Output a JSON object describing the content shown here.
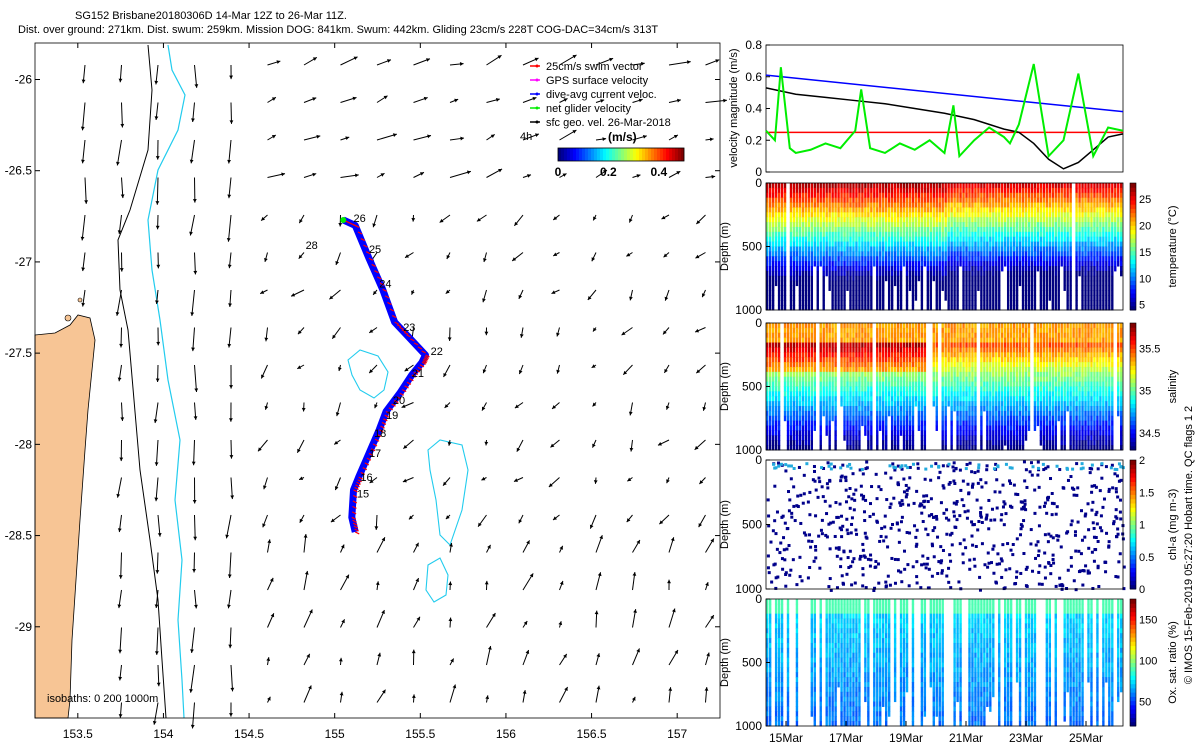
{
  "header": {
    "line1": "SG152 Brisbane20180306D 14-Mar 12Z to 26-Mar 11Z.",
    "line2": "Dist. over ground: 271km. Dist. swum: 259km. Mission DOG: 841km. Swum: 442km. Gliding 23cm/s 228T COG-DAC=34cm/s 313T"
  },
  "colors": {
    "land": "#f7c595",
    "isobath_cyan": "#22ccee",
    "track": "#0000ff",
    "swim_red": "#ff0000",
    "gps_magenta": "#ff00ff",
    "net_green": "#00ee00"
  },
  "chart_data": [
    {
      "type": "map",
      "xlim": [
        153.25,
        157.25
      ],
      "ylim": [
        -29.5,
        -25.8
      ],
      "x_ticks": [
        153.5,
        154,
        154.5,
        155,
        155.5,
        156,
        156.5,
        157
      ],
      "x_tick_labels": [
        "153.5",
        "154",
        "154.5",
        "155",
        "155.5",
        "156",
        "156.5",
        "157"
      ],
      "y_ticks": [
        -26,
        -26.5,
        -27,
        -27.5,
        -28,
        -28.5,
        -29
      ],
      "y_tick_labels": [
        "-26",
        "-26.5",
        "-27",
        "-27.5",
        "-28",
        "-28.5",
        "-29"
      ],
      "legend": [
        {
          "label": "25cm/s swim vector",
          "color": "#ff0000"
        },
        {
          "label": "GPS surface velocity",
          "color": "#ff00ff"
        },
        {
          "label": "dive-avg current veloc.",
          "color": "#0000ff"
        },
        {
          "label": "net glider velocity",
          "color": "#00ee00"
        },
        {
          "label": "sfc geo. vel. 26-Mar-2018",
          "color": "#000000"
        }
      ],
      "legend_position": "top-right",
      "colorbar": {
        "title": "(m/s)",
        "ticks": [
          0,
          0.2,
          0.4
        ],
        "tick_labels": [
          "0",
          "0.2",
          "0.4"
        ],
        "range": [
          0,
          0.5
        ]
      },
      "annotations": {
        "time_label": "4h",
        "isobaths_label": "isobaths: 0  200  1000m"
      },
      "track_days": [
        {
          "label": "26",
          "lon": 155.11,
          "lat": -26.78
        },
        {
          "label": "25",
          "lon": 155.2,
          "lat": -26.95
        },
        {
          "label": "24",
          "lon": 155.26,
          "lat": -27.14
        },
        {
          "label": "23",
          "lon": 155.4,
          "lat": -27.38
        },
        {
          "label": "22",
          "lon": 155.56,
          "lat": -27.51
        },
        {
          "label": "21",
          "lon": 155.45,
          "lat": -27.63
        },
        {
          "label": "20",
          "lon": 155.34,
          "lat": -27.78
        },
        {
          "label": "19",
          "lon": 155.3,
          "lat": -27.86
        },
        {
          "label": "18",
          "lon": 155.23,
          "lat": -27.96
        },
        {
          "label": "17",
          "lon": 155.2,
          "lat": -28.07
        },
        {
          "label": "16",
          "lon": 155.15,
          "lat": -28.2
        },
        {
          "label": "15",
          "lon": 155.13,
          "lat": -28.29
        },
        {
          "label": "28",
          "lon": 154.83,
          "lat": -26.93
        }
      ],
      "track_path": [
        [
          155.12,
          -28.48
        ],
        [
          155.1,
          -28.4
        ],
        [
          155.11,
          -28.25
        ],
        [
          155.14,
          -28.18
        ],
        [
          155.2,
          -28.05
        ],
        [
          155.26,
          -27.92
        ],
        [
          155.3,
          -27.82
        ],
        [
          155.38,
          -27.72
        ],
        [
          155.45,
          -27.62
        ],
        [
          155.51,
          -27.55
        ],
        [
          155.53,
          -27.51
        ],
        [
          155.42,
          -27.4
        ],
        [
          155.35,
          -27.33
        ],
        [
          155.28,
          -27.15
        ],
        [
          155.2,
          -26.98
        ],
        [
          155.12,
          -26.8
        ],
        [
          155.05,
          -26.77
        ]
      ]
    },
    {
      "type": "line",
      "ylabel": "velocity magnitude (m/s)",
      "ylim": [
        0,
        0.8
      ],
      "y_ticks": [
        0,
        0.2,
        0.4,
        0.6,
        0.8
      ],
      "y_tick_labels": [
        "0",
        "0.2",
        "0.4",
        "0.6",
        "0.8"
      ],
      "series": [
        {
          "name": "blue trend",
          "color": "#0000ff",
          "t": [
            0,
            12
          ],
          "values": [
            0.61,
            0.38
          ]
        },
        {
          "name": "red constant",
          "color": "#ff0000",
          "t": [
            0,
            12
          ],
          "values": [
            0.25,
            0.25
          ]
        },
        {
          "name": "black smooth",
          "color": "#000000",
          "t": [
            0,
            1,
            2,
            3,
            4,
            5,
            6,
            7,
            7.5,
            8,
            8.5,
            9,
            9.5,
            10,
            10.5,
            11,
            11.5,
            12
          ],
          "values": [
            0.53,
            0.49,
            0.47,
            0.45,
            0.43,
            0.4,
            0.37,
            0.33,
            0.3,
            0.27,
            0.25,
            0.18,
            0.08,
            0.02,
            0.06,
            0.14,
            0.22,
            0.24
          ]
        },
        {
          "name": "green",
          "color": "#00ee00",
          "t": [
            0,
            0.3,
            0.5,
            0.8,
            1,
            1.5,
            2,
            2.5,
            3,
            3.2,
            3.5,
            4,
            4.5,
            5,
            5.5,
            6,
            6.3,
            6.5,
            7,
            7.5,
            8,
            8.2,
            8.5,
            9,
            9.5,
            10,
            10.5,
            11,
            11.5,
            12
          ],
          "values": [
            0.26,
            0.2,
            0.66,
            0.15,
            0.12,
            0.14,
            0.18,
            0.15,
            0.26,
            0.52,
            0.15,
            0.12,
            0.18,
            0.14,
            0.2,
            0.12,
            0.42,
            0.1,
            0.2,
            0.28,
            0.22,
            0.18,
            0.3,
            0.68,
            0.1,
            0.2,
            0.62,
            0.1,
            0.28,
            0.26
          ]
        }
      ]
    },
    {
      "type": "heatmap",
      "ylabel": "Depth (m)",
      "clabel": "temperature (°C)",
      "y_ticks": [
        0,
        500,
        1000
      ],
      "y_tick_labels": [
        "0",
        "500",
        "1000"
      ],
      "clim": [
        4,
        28
      ],
      "c_ticks": [
        5,
        10,
        15,
        20,
        25
      ],
      "c_tick_labels": [
        "5",
        "10",
        "15",
        "20",
        "25"
      ]
    },
    {
      "type": "heatmap",
      "ylabel": "Depth (m)",
      "clabel": "salinity",
      "y_ticks": [
        0,
        500,
        1000
      ],
      "y_tick_labels": [
        "0",
        "500",
        "1000"
      ],
      "clim": [
        34.3,
        35.8
      ],
      "c_ticks": [
        34.5,
        35,
        35.5
      ],
      "c_tick_labels": [
        "34.5",
        "35",
        "35.5"
      ]
    },
    {
      "type": "scatter",
      "ylabel": "Depth (m)",
      "clabel": "chl-a (mg m-3)",
      "y_ticks": [
        0,
        500,
        1000
      ],
      "y_tick_labels": [
        "0",
        "500",
        "1000"
      ],
      "clim": [
        0,
        2
      ],
      "c_ticks": [
        0,
        0.5,
        1,
        1.5,
        2
      ],
      "c_tick_labels": [
        "0",
        "0.5",
        "1",
        "1.5",
        "2"
      ]
    },
    {
      "type": "heatmap",
      "ylabel": "Depth (m)",
      "clabel": "Ox. sat. ratio (%)",
      "y_ticks": [
        0,
        500,
        1000
      ],
      "y_tick_labels": [
        "0",
        "500",
        "1000"
      ],
      "clim": [
        20,
        175
      ],
      "c_ticks": [
        50,
        100,
        150
      ],
      "c_tick_labels": [
        "50",
        "100",
        "150"
      ],
      "x_tick_labels": [
        "15Mar",
        "17Mar",
        "19Mar",
        "21Mar",
        "23Mar",
        "25Mar"
      ]
    }
  ],
  "footer": {
    "side_note": "© IMOS 15-Feb-2019 05:27:20 Hobart time. QC flags 1  2"
  }
}
